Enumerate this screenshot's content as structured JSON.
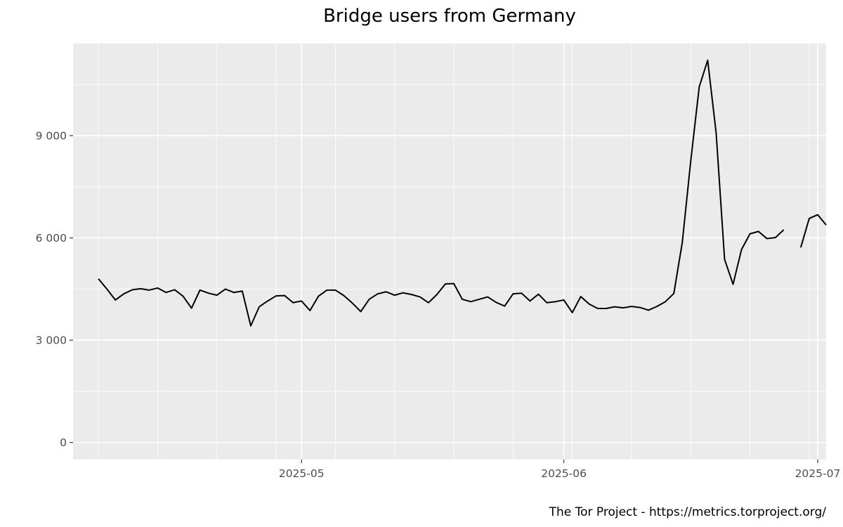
{
  "chart_data": {
    "type": "line",
    "title": "Bridge users from Germany",
    "caption": "The Tor Project - https://metrics.torproject.org/",
    "xlabel": "",
    "ylabel": "",
    "x_start": "2025-04-07",
    "x_end": "2025-07-01",
    "xlim": [
      "2025-04-04",
      "2025-07-02"
    ],
    "ylim": [
      -500,
      11700
    ],
    "x_ticks": [
      {
        "date": "2025-05-01",
        "label": "2025-05"
      },
      {
        "date": "2025-06-01",
        "label": "2025-06"
      },
      {
        "date": "2025-07-01",
        "label": "2025-07"
      }
    ],
    "y_ticks": [
      {
        "value": 0,
        "label": "0"
      },
      {
        "value": 3000,
        "label": "3 000"
      },
      {
        "value": 6000,
        "label": "6 000"
      },
      {
        "value": 9000,
        "label": "9 000"
      }
    ],
    "grid": true,
    "legend": "none",
    "colors": {
      "panel": "#ebebeb",
      "grid": "#ffffff",
      "line": "#000000"
    },
    "series": [
      {
        "values": [
          4800,
          4500,
          4180,
          4360,
          4480,
          4510,
          4470,
          4530,
          4400,
          4480,
          4290,
          3940,
          4470,
          4380,
          4320,
          4500,
          4400,
          4440,
          3420,
          3980,
          4150,
          4300,
          4310,
          4100,
          4150,
          3870,
          4290,
          4470,
          4470,
          4310,
          4090,
          3840,
          4200,
          4360,
          4420,
          4320,
          4390,
          4340,
          4270,
          4100,
          4340,
          4650,
          4660,
          4200,
          4130,
          4200,
          4270,
          4110,
          4000,
          4360,
          4380,
          4150,
          4350,
          4100,
          4130,
          4180,
          3810,
          4280,
          4060,
          3930,
          3930,
          3980,
          3950,
          3990,
          3960,
          3880,
          3990,
          4130,
          4370,
          5870,
          8260,
          10430,
          11210,
          9080,
          5370,
          4640,
          5660,
          6120,
          6190,
          5980,
          6010,
          6240,
          null,
          5720,
          6570,
          6680,
          6380
        ]
      }
    ]
  }
}
